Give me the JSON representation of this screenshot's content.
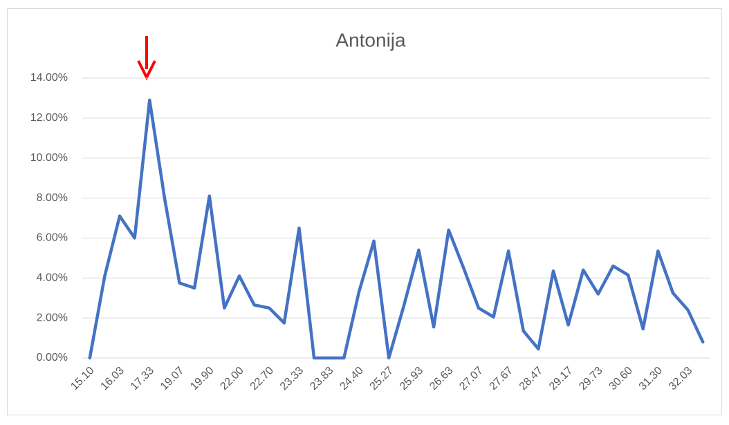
{
  "chart_data": {
    "type": "line",
    "title": "Antonija",
    "categories": [
      "15.10",
      null,
      "16.03",
      null,
      "17.33",
      null,
      "19.07",
      null,
      "19.90",
      null,
      "22.00",
      null,
      "22.70",
      null,
      "23.33",
      null,
      "23.83",
      null,
      "24.40",
      null,
      "25.27",
      null,
      "25.93",
      null,
      "26.63",
      null,
      "27.07",
      null,
      "27.67",
      null,
      "28.47",
      null,
      "29.17",
      null,
      "29.73",
      null,
      "30.60",
      null,
      "31.30",
      null,
      "32.03",
      null
    ],
    "series": [
      {
        "name": "Antonija",
        "color": "#4472c4",
        "values": [
          0,
          4.1,
          7.1,
          6.0,
          12.9,
          8.0,
          3.75,
          3.5,
          8.1,
          2.5,
          4.1,
          2.65,
          2.5,
          1.75,
          6.5,
          0,
          0,
          0,
          3.3,
          5.85,
          0,
          2.6,
          5.4,
          1.55,
          6.4,
          4.5,
          2.5,
          2.05,
          5.35,
          1.35,
          0.45,
          4.35,
          1.65,
          4.4,
          3.2,
          4.6,
          4.15,
          1.45,
          5.35,
          3.25,
          2.4,
          0.8
        ]
      }
    ],
    "ylim": [
      0,
      14
    ],
    "yticks": [
      {
        "value": 0,
        "label": "0.00%"
      },
      {
        "value": 2,
        "label": "2.00%"
      },
      {
        "value": 4,
        "label": "4.00%"
      },
      {
        "value": 6,
        "label": "6.00%"
      },
      {
        "value": 8,
        "label": "8.00%"
      },
      {
        "value": 10,
        "label": "10.00%"
      },
      {
        "value": 12,
        "label": "12.00%"
      },
      {
        "value": 14,
        "label": "14.00%"
      }
    ],
    "grid": true
  }
}
